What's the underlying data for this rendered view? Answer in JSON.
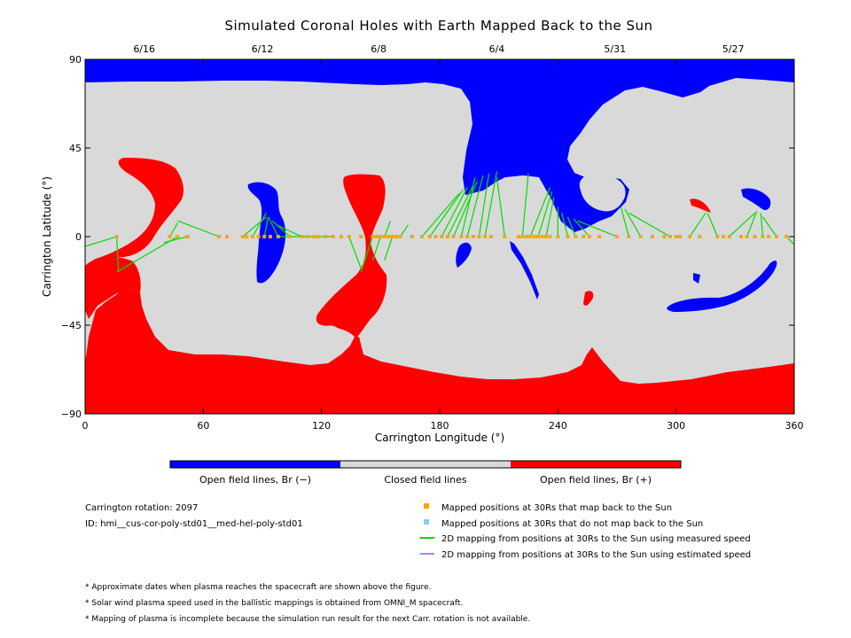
{
  "chart_data": {
    "type": "heatmap",
    "title": "Simulated Coronal Holes with Earth Mapped Back to the Sun",
    "xlabel": "Carrington Longitude (°)",
    "ylabel": "Carrington Latitude (°)",
    "xlim": [
      0,
      360
    ],
    "ylim": [
      -90,
      90
    ],
    "x_ticks": [
      0,
      60,
      120,
      180,
      240,
      300,
      360
    ],
    "y_ticks": [
      90,
      45,
      0,
      -45,
      -90
    ],
    "y_tick_labels": [
      "90",
      "45",
      "0",
      "−45",
      "−90"
    ],
    "top_dates": [
      {
        "label": "6/16",
        "lon": 30
      },
      {
        "label": "6/12",
        "lon": 90
      },
      {
        "label": "6/8",
        "lon": 149
      },
      {
        "label": "6/4",
        "lon": 209
      },
      {
        "label": "5/31",
        "lon": 269
      },
      {
        "label": "5/27",
        "lon": 329
      }
    ],
    "colorbar": {
      "labels": [
        "Open field lines, Br (−)",
        "Closed field lines",
        "Open field lines, Br (+)"
      ],
      "colors": [
        "#0000ff",
        "#d9d9d9",
        "#ff0000"
      ]
    },
    "mapped_points_lon": [
      16,
      43,
      47,
      52,
      68,
      72,
      80,
      82,
      85,
      88,
      91,
      94,
      98,
      104,
      110,
      113,
      116,
      118,
      122,
      126,
      130,
      134,
      140,
      146,
      148,
      150,
      152,
      154,
      156,
      158,
      160,
      166,
      171,
      175,
      178,
      181,
      184,
      187,
      191,
      194,
      197,
      200,
      203,
      206,
      213,
      220,
      222,
      224,
      226,
      228,
      230,
      232,
      234,
      236,
      240,
      245,
      249,
      253,
      256,
      261,
      270,
      276,
      282,
      288,
      294,
      297,
      300,
      302,
      307,
      312,
      321,
      324,
      327,
      333,
      336,
      340,
      344,
      347,
      351,
      356
    ],
    "field_lines": [
      {
        "from": [
          16,
          0
        ],
        "to": [
          0,
          -5
        ]
      },
      {
        "from": [
          16,
          0
        ],
        "to": [
          17,
          -18
        ]
      },
      {
        "from": [
          47,
          0
        ],
        "to": [
          16,
          -18
        ]
      },
      {
        "from": [
          43,
          0
        ],
        "to": [
          47,
          7
        ]
      },
      {
        "from": [
          52,
          0
        ],
        "to": [
          40,
          -3
        ]
      },
      {
        "from": [
          68,
          0
        ],
        "to": [
          47,
          8
        ]
      },
      {
        "from": [
          80,
          0
        ],
        "to": [
          92,
          10
        ]
      },
      {
        "from": [
          85,
          0
        ],
        "to": [
          92,
          12
        ]
      },
      {
        "from": [
          91,
          0
        ],
        "to": [
          93,
          10
        ]
      },
      {
        "from": [
          98,
          0
        ],
        "to": [
          93,
          10
        ]
      },
      {
        "from": [
          104,
          0
        ],
        "to": [
          95,
          8
        ]
      },
      {
        "from": [
          110,
          0
        ],
        "to": [
          97,
          6
        ]
      },
      {
        "from": [
          126,
          0
        ],
        "to": [
          98,
          0
        ]
      },
      {
        "from": [
          134,
          0
        ],
        "to": [
          140,
          -16
        ]
      },
      {
        "from": [
          146,
          0
        ],
        "to": [
          140,
          -18
        ]
      },
      {
        "from": [
          150,
          0
        ],
        "to": [
          146,
          -12
        ]
      },
      {
        "from": [
          152,
          0
        ],
        "to": [
          155,
          8
        ]
      },
      {
        "from": [
          156,
          0
        ],
        "to": [
          152,
          -12
        ]
      },
      {
        "from": [
          160,
          0
        ],
        "to": [
          164,
          6
        ]
      },
      {
        "from": [
          171,
          0
        ],
        "to": [
          190,
          22
        ]
      },
      {
        "from": [
          175,
          0
        ],
        "to": [
          192,
          24
        ]
      },
      {
        "from": [
          181,
          0
        ],
        "to": [
          194,
          25
        ]
      },
      {
        "from": [
          184,
          0
        ],
        "to": [
          197,
          26
        ]
      },
      {
        "from": [
          187,
          0
        ],
        "to": [
          199,
          28
        ]
      },
      {
        "from": [
          191,
          0
        ],
        "to": [
          198,
          30
        ]
      },
      {
        "from": [
          194,
          0
        ],
        "to": [
          202,
          31
        ]
      },
      {
        "from": [
          200,
          0
        ],
        "to": [
          205,
          32
        ]
      },
      {
        "from": [
          203,
          0
        ],
        "to": [
          209,
          33
        ]
      },
      {
        "from": [
          213,
          0
        ],
        "to": [
          209,
          30
        ]
      },
      {
        "from": [
          222,
          0
        ],
        "to": [
          225,
          32
        ]
      },
      {
        "from": [
          226,
          0
        ],
        "to": [
          236,
          25
        ]
      },
      {
        "from": [
          230,
          0
        ],
        "to": [
          237,
          23
        ]
      },
      {
        "from": [
          234,
          0
        ],
        "to": [
          238,
          20
        ]
      },
      {
        "from": [
          240,
          0
        ],
        "to": [
          240,
          15
        ]
      },
      {
        "from": [
          245,
          0
        ],
        "to": [
          242,
          12
        ]
      },
      {
        "from": [
          249,
          0
        ],
        "to": [
          245,
          10
        ]
      },
      {
        "from": [
          256,
          0
        ],
        "to": [
          248,
          9
        ]
      },
      {
        "from": [
          270,
          0
        ],
        "to": [
          250,
          8
        ]
      },
      {
        "from": [
          276,
          0
        ],
        "to": [
          272,
          15
        ]
      },
      {
        "from": [
          282,
          0
        ],
        "to": [
          274,
          14
        ]
      },
      {
        "from": [
          297,
          0
        ],
        "to": [
          276,
          12
        ]
      },
      {
        "from": [
          307,
          0
        ],
        "to": [
          315,
          12
        ]
      },
      {
        "from": [
          321,
          0
        ],
        "to": [
          316,
          12
        ]
      },
      {
        "from": [
          327,
          0
        ],
        "to": [
          340,
          12
        ]
      },
      {
        "from": [
          336,
          0
        ],
        "to": [
          341,
          13
        ]
      },
      {
        "from": [
          344,
          0
        ],
        "to": [
          343,
          12
        ]
      },
      {
        "from": [
          351,
          0
        ],
        "to": [
          344,
          10
        ]
      },
      {
        "from": [
          356,
          0
        ],
        "to": [
          360,
          -4
        ]
      }
    ]
  },
  "legend": {
    "carrington_rotation": "Carrington rotation: 2097",
    "id": "ID: hmi__cus-cor-poly-std01__med-hel-poly-std01",
    "items": [
      {
        "label": "Mapped positions at 30Rs that map back to the Sun",
        "color": "#ffa500",
        "kind": "square"
      },
      {
        "label": "Mapped positions at 30Rs that do not map back to the Sun",
        "color": "#87cefa",
        "kind": "square"
      },
      {
        "label": "2D mapping from positions at 30Rs to the Sun using measured speed",
        "color": "#00dd00",
        "kind": "line"
      },
      {
        "label": "2D mapping from positions at 30Rs to the Sun using estimated speed",
        "color": "#b87fe8",
        "kind": "line"
      }
    ]
  },
  "notes": [
    "* Approximate dates when plasma reaches the spacecraft are shown above the figure.",
    "* Solar wind plasma speed used in the ballistic mappings is obtained from OMNI_M spacecraft.",
    "* Mapping of plasma is incomplete because the simulation run result for the next Carr. rotation is not available."
  ]
}
